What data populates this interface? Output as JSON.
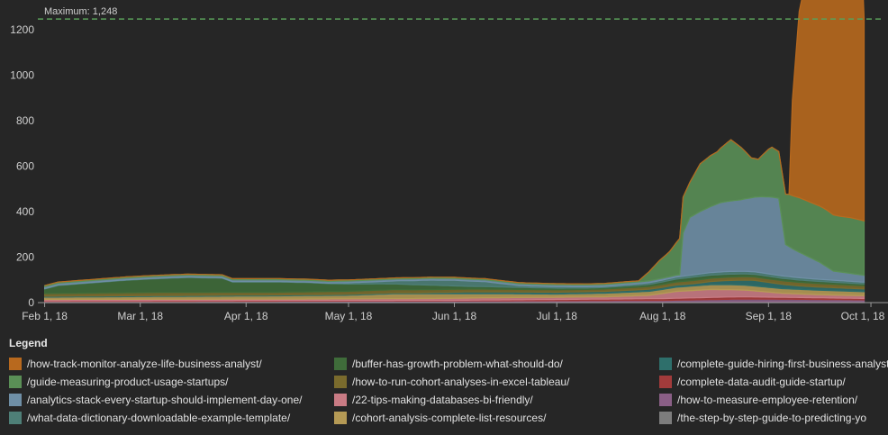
{
  "chart_data": {
    "type": "area",
    "stacked": true,
    "x_start": "2018-02-01",
    "x_end": "2018-09-29",
    "xlim": [
      "2018-01-30",
      "2018-10-06"
    ],
    "x_ticks": [
      {
        "date": "2018-02-01",
        "label": "Feb 1, 18"
      },
      {
        "date": "2018-03-01",
        "label": "Mar 1, 18"
      },
      {
        "date": "2018-04-01",
        "label": "Apr 1, 18"
      },
      {
        "date": "2018-05-01",
        "label": "May 1, 18"
      },
      {
        "date": "2018-06-01",
        "label": "Jun 1, 18"
      },
      {
        "date": "2018-07-01",
        "label": "Jul 1, 18"
      },
      {
        "date": "2018-08-01",
        "label": "Aug 1, 18"
      },
      {
        "date": "2018-09-01",
        "label": "Sep 1, 18"
      },
      {
        "date": "2018-10-01",
        "label": "Oct 1, 18"
      }
    ],
    "y_ticks": [
      0,
      200,
      400,
      600,
      800,
      1000,
      1200
    ],
    "ylim": [
      0,
      1300
    ],
    "grid": false,
    "reference_line": {
      "value": 1248,
      "label": "Maximum: 1,248",
      "color": "#5aa05a"
    },
    "legend_title": "Legend",
    "legend_position": "bottom",
    "series_order": [
      "rawkeys"
    ],
    "series": [
      {
        "name": "/how-track-monitor-analyze-life-business-analyst/",
        "color": "#b8691e",
        "points": [
          [
            "2018-09-07",
            0
          ],
          [
            "2018-09-08",
            420
          ],
          [
            "2018-09-10",
            820
          ],
          [
            "2018-09-12",
            975
          ],
          [
            "2018-09-14",
            1030
          ],
          [
            "2018-09-16",
            1075
          ],
          [
            "2018-09-18",
            1110
          ],
          [
            "2018-09-20",
            1140
          ],
          [
            "2018-09-22",
            1175
          ],
          [
            "2018-09-24",
            1200
          ],
          [
            "2018-09-26",
            1235
          ],
          [
            "2018-09-28",
            1248
          ],
          [
            "2018-09-29",
            890
          ]
        ]
      },
      {
        "name": "/guide-measuring-product-usage-startups/",
        "color": "#5a8f56",
        "points": [
          [
            "2018-02-01",
            5
          ],
          [
            "2018-07-25",
            5
          ],
          [
            "2018-07-28",
            40
          ],
          [
            "2018-07-31",
            80
          ],
          [
            "2018-08-03",
            110
          ],
          [
            "2018-08-06",
            160
          ],
          [
            "2018-08-09",
            155
          ],
          [
            "2018-08-12",
            210
          ],
          [
            "2018-08-15",
            225
          ],
          [
            "2018-08-17",
            230
          ],
          [
            "2018-08-19",
            250
          ],
          [
            "2018-08-21",
            270
          ],
          [
            "2018-08-24",
            230
          ],
          [
            "2018-08-27",
            175
          ],
          [
            "2018-08-29",
            165
          ],
          [
            "2018-09-01",
            210
          ],
          [
            "2018-09-02",
            220
          ],
          [
            "2018-09-04",
            205
          ],
          [
            "2018-09-07",
            230
          ],
          [
            "2018-09-10",
            240
          ],
          [
            "2018-09-14",
            245
          ],
          [
            "2018-09-18",
            250
          ],
          [
            "2018-09-22",
            245
          ],
          [
            "2018-09-25",
            245
          ],
          [
            "2018-09-29",
            240
          ]
        ]
      },
      {
        "name": "/analytics-stack-every-startup-should-implement-day-one/",
        "color": "#6f8fa6",
        "points": [
          [
            "2018-02-01",
            8
          ],
          [
            "2018-03-20",
            8
          ],
          [
            "2018-08-06",
            8
          ],
          [
            "2018-08-07",
            190
          ],
          [
            "2018-08-09",
            255
          ],
          [
            "2018-08-12",
            275
          ],
          [
            "2018-08-15",
            290
          ],
          [
            "2018-08-18",
            305
          ],
          [
            "2018-08-21",
            310
          ],
          [
            "2018-08-24",
            315
          ],
          [
            "2018-08-27",
            325
          ],
          [
            "2018-08-30",
            335
          ],
          [
            "2018-09-02",
            340
          ],
          [
            "2018-09-04",
            340
          ],
          [
            "2018-09-06",
            140
          ],
          [
            "2018-09-08",
            125
          ],
          [
            "2018-09-12",
            100
          ],
          [
            "2018-09-16",
            75
          ],
          [
            "2018-09-20",
            40
          ],
          [
            "2018-09-25",
            35
          ],
          [
            "2018-09-29",
            30
          ]
        ]
      },
      {
        "name": "/what-data-dictionary-downloadable-example-template/",
        "color": "#4e7f77",
        "points": [
          [
            "2018-02-01",
            2
          ],
          [
            "2018-04-25",
            2
          ],
          [
            "2018-05-10",
            10
          ],
          [
            "2018-05-25",
            22
          ],
          [
            "2018-06-01",
            25
          ],
          [
            "2018-06-10",
            22
          ],
          [
            "2018-06-20",
            8
          ],
          [
            "2018-07-15",
            5
          ],
          [
            "2018-08-01",
            8
          ],
          [
            "2018-08-20",
            12
          ],
          [
            "2018-09-10",
            10
          ],
          [
            "2018-09-29",
            8
          ]
        ]
      },
      {
        "name": "/buffer-has-growth-problem-what-should-do/",
        "color": "#3f6c3a",
        "points": [
          [
            "2018-02-01",
            20
          ],
          [
            "2018-02-05",
            35
          ],
          [
            "2018-02-15",
            45
          ],
          [
            "2018-02-25",
            55
          ],
          [
            "2018-03-05",
            60
          ],
          [
            "2018-03-15",
            65
          ],
          [
            "2018-03-25",
            62
          ],
          [
            "2018-03-28",
            45
          ],
          [
            "2018-04-10",
            45
          ],
          [
            "2018-04-20",
            40
          ],
          [
            "2018-04-25",
            35
          ],
          [
            "2018-05-05",
            30
          ],
          [
            "2018-05-15",
            25
          ],
          [
            "2018-05-25",
            20
          ],
          [
            "2018-06-05",
            12
          ],
          [
            "2018-06-15",
            10
          ],
          [
            "2018-06-25",
            8
          ],
          [
            "2018-07-10",
            6
          ],
          [
            "2018-07-25",
            8
          ],
          [
            "2018-08-10",
            15
          ],
          [
            "2018-08-25",
            12
          ],
          [
            "2018-09-10",
            10
          ],
          [
            "2018-09-29",
            8
          ]
        ]
      },
      {
        "name": "/how-to-run-cohort-analyses-in-excel-tableau/",
        "color": "#7a6b2d",
        "points": [
          [
            "2018-02-01",
            12
          ],
          [
            "2018-03-10",
            14
          ],
          [
            "2018-04-10",
            12
          ],
          [
            "2018-05-10",
            14
          ],
          [
            "2018-06-10",
            12
          ],
          [
            "2018-07-10",
            10
          ],
          [
            "2018-08-10",
            14
          ],
          [
            "2018-09-10",
            16
          ],
          [
            "2018-09-29",
            14
          ]
        ]
      },
      {
        "name": "/22-tips-making-databases-bi-friendly/",
        "color": "#c97b84",
        "points": [
          [
            "2018-02-01",
            6
          ],
          [
            "2018-04-10",
            6
          ],
          [
            "2018-05-25",
            8
          ],
          [
            "2018-06-10",
            10
          ],
          [
            "2018-07-15",
            10
          ],
          [
            "2018-07-28",
            15
          ],
          [
            "2018-08-05",
            30
          ],
          [
            "2018-08-15",
            35
          ],
          [
            "2018-08-25",
            30
          ],
          [
            "2018-09-05",
            18
          ],
          [
            "2018-09-15",
            14
          ],
          [
            "2018-09-29",
            12
          ]
        ]
      },
      {
        "name": "/cohort-analysis-complete-list-resources/",
        "color": "#b59a55",
        "points": [
          [
            "2018-02-01",
            10
          ],
          [
            "2018-03-01",
            12
          ],
          [
            "2018-04-01",
            14
          ],
          [
            "2018-05-01",
            16
          ],
          [
            "2018-05-15",
            22
          ],
          [
            "2018-06-01",
            20
          ],
          [
            "2018-07-01",
            14
          ],
          [
            "2018-08-01",
            18
          ],
          [
            "2018-08-20",
            22
          ],
          [
            "2018-09-10",
            20
          ],
          [
            "2018-09-29",
            18
          ]
        ]
      },
      {
        "name": "/complete-guide-hiring-first-business-analyst/",
        "color": "#2e6f6b",
        "points": [
          [
            "2018-02-01",
            4
          ],
          [
            "2018-05-20",
            4
          ],
          [
            "2018-06-05",
            8
          ],
          [
            "2018-07-15",
            8
          ],
          [
            "2018-08-10",
            10
          ],
          [
            "2018-08-28",
            25
          ],
          [
            "2018-09-10",
            15
          ],
          [
            "2018-09-29",
            12
          ]
        ]
      },
      {
        "name": "/complete-data-audit-guide-startup/",
        "color": "#a23b3b",
        "points": [
          [
            "2018-02-01",
            3
          ],
          [
            "2018-06-01",
            3
          ],
          [
            "2018-08-01",
            8
          ],
          [
            "2018-08-20",
            10
          ],
          [
            "2018-09-29",
            6
          ]
        ]
      },
      {
        "name": "/how-to-measure-employee-retention/",
        "color": "#8a5f86",
        "points": [
          [
            "2018-02-01",
            3
          ],
          [
            "2018-06-01",
            4
          ],
          [
            "2018-08-01",
            6
          ],
          [
            "2018-08-25",
            12
          ],
          [
            "2018-09-15",
            10
          ],
          [
            "2018-09-29",
            8
          ]
        ]
      },
      {
        "name": "/the-step-by-step-guide-to-predicting-yo",
        "color": "#7d7d7d",
        "points": [
          [
            "2018-02-01",
            2
          ],
          [
            "2018-09-29",
            4
          ]
        ]
      }
    ]
  }
}
